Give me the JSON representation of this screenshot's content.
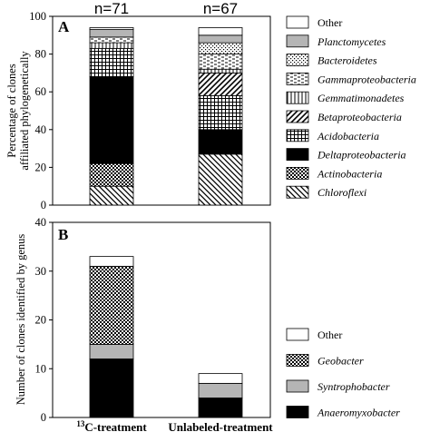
{
  "chart_data": [
    {
      "type": "bar",
      "stacked": true,
      "panel_label": "A",
      "ylabel_line1": "Percentage of clones",
      "ylabel_line2": "affiliated phylogenetically",
      "ylim": [
        0,
        100
      ],
      "yticks": [
        0,
        20,
        40,
        60,
        80,
        100
      ],
      "categories": [
        "13C-treatment",
        "Unlabeled-treatment"
      ],
      "category_annotations": [
        "n=71",
        "n=67"
      ],
      "legend_position": "right",
      "series": [
        {
          "name": "Chloroflexi",
          "values": [
            10,
            27
          ],
          "pattern": "diag-back"
        },
        {
          "name": "Actinobacteria",
          "values": [
            12,
            0
          ],
          "pattern": "checker"
        },
        {
          "name": "Deltaproteobacteria",
          "values": [
            46,
            13
          ],
          "pattern": "solid-black"
        },
        {
          "name": "Acidobacteria",
          "values": [
            15,
            18
          ],
          "pattern": "grid"
        },
        {
          "name": "Betaproteobacteria",
          "values": [
            0,
            12
          ],
          "pattern": "diag-forward"
        },
        {
          "name": "Gemmatimonadetes",
          "values": [
            3,
            2
          ],
          "pattern": "vertical"
        },
        {
          "name": "Gammaproteobacteria",
          "values": [
            3,
            8
          ],
          "pattern": "dashes"
        },
        {
          "name": "Bacteroidetes",
          "values": [
            0,
            6
          ],
          "pattern": "dots"
        },
        {
          "name": "Planctomycetes",
          "values": [
            4,
            4
          ],
          "pattern": "solid-gray"
        },
        {
          "name": "Other",
          "values": [
            1,
            4
          ],
          "pattern": "white"
        }
      ]
    },
    {
      "type": "bar",
      "stacked": true,
      "panel_label": "B",
      "ylabel": "Number of clones identified by genus",
      "ylim": [
        0,
        40
      ],
      "yticks": [
        0,
        10,
        20,
        30,
        40
      ],
      "categories": [
        "13C-treatment",
        "Unlabeled-treatment"
      ],
      "category_display": [
        {
          "sup": "13",
          "text": "C-treatment"
        },
        {
          "sup": "",
          "text": "Unlabeled-treatment"
        }
      ],
      "legend_position": "right",
      "series": [
        {
          "name": "Anaeromyxobacter",
          "values": [
            12,
            4
          ],
          "pattern": "solid-black"
        },
        {
          "name": "Syntrophobacter",
          "values": [
            3,
            3
          ],
          "pattern": "solid-gray"
        },
        {
          "name": "Geobacter",
          "values": [
            16,
            0
          ],
          "pattern": "checker"
        },
        {
          "name": "Other",
          "values": [
            2,
            2
          ],
          "pattern": "white"
        }
      ]
    }
  ]
}
